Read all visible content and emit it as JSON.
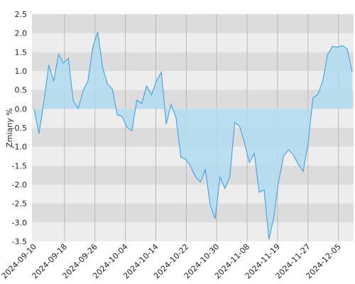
{
  "chart_data": {
    "type": "area",
    "ylabel": "Zmiany %",
    "ylim": [
      -3.5,
      2.5
    ],
    "y_ticks": [
      "2.5",
      "2.0",
      "1.5",
      "1.0",
      "0.5",
      "0.0",
      "-0.5",
      "-1.0",
      "-1.5",
      "-2.0",
      "-2.5",
      "-3.0",
      "-3.5"
    ],
    "x_ticks": [
      "2024-09-10",
      "2024-09-18",
      "2024-09-26",
      "2024-10-04",
      "2024-10-14",
      "2024-10-22",
      "2024-10-30",
      "2024-11-08",
      "2024-11-19",
      "2024-11-27",
      "2024-12-05"
    ],
    "grid": true,
    "colors": {
      "line": "#4da6e6",
      "fill": "#b3dcee",
      "band_dark": "#dcdcdc",
      "band_light": "#ededed",
      "vgrid": "#b8b8b8"
    },
    "series": [
      {
        "values": [
          0.0,
          -0.66,
          0.18,
          1.16,
          0.73,
          1.44,
          1.21,
          1.33,
          0.22,
          0.01,
          0.47,
          0.74,
          1.63,
          2.03,
          1.1,
          0.66,
          0.52,
          -0.16,
          -0.2,
          -0.49,
          -0.58,
          0.23,
          0.14,
          0.6,
          0.37,
          0.73,
          0.97,
          -0.4,
          0.12,
          -0.23,
          -1.28,
          -1.33,
          -1.52,
          -1.8,
          -1.93,
          -1.6,
          -2.55,
          -2.9,
          -1.8,
          -2.1,
          -1.8,
          -0.36,
          -0.46,
          -0.9,
          -1.42,
          -1.17,
          -2.2,
          -2.14,
          -3.45,
          -2.85,
          -1.9,
          -1.24,
          -1.08,
          -1.22,
          -1.47,
          -1.65,
          -0.9,
          0.3,
          0.38,
          0.75,
          1.44,
          1.65,
          1.63,
          1.67,
          1.58,
          0.97
        ]
      }
    ]
  }
}
